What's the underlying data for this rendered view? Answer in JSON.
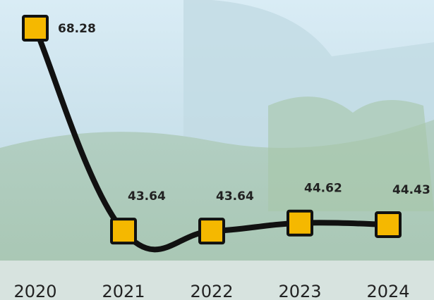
{
  "chart_data": {
    "type": "line",
    "categories": [
      "2020",
      "2021",
      "2022",
      "2023",
      "2024"
    ],
    "values": [
      68.28,
      43.64,
      43.64,
      44.62,
      44.43
    ],
    "color": "#111111",
    "marker_color": "#f5b800",
    "ylim": [
      37.5,
      71.7
    ]
  }
}
